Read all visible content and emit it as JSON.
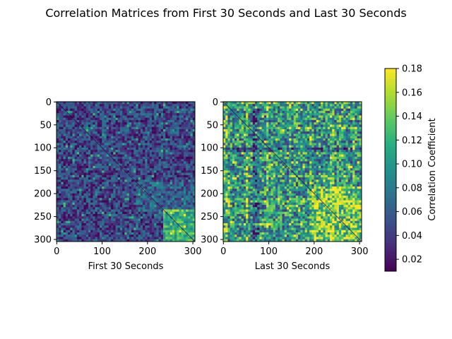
{
  "chart_data": {
    "title": "Correlation Matrices from First 30 Seconds and Last 30 Seconds",
    "type": "heatmap",
    "colormap": "viridis",
    "matrix_size": 305,
    "panels": [
      {
        "xlabel": "First 30 Seconds",
        "xticks": [
          "0",
          "100",
          "200",
          "300"
        ],
        "yticks": [
          "0",
          "50",
          "100",
          "150",
          "200",
          "250",
          "300"
        ],
        "summary": {
          "typical_value": 0.05,
          "bright_region": "lower-right (rows 230–305, cols 230–305)"
        }
      },
      {
        "xlabel": "Last 30 Seconds",
        "xticks": [
          "0",
          "100",
          "200",
          "300"
        ],
        "yticks": [
          "0",
          "50",
          "100",
          "150",
          "200",
          "250",
          "300"
        ],
        "summary": {
          "typical_value": 0.11,
          "bright_region": "lower-right and banded rows/columns"
        }
      }
    ],
    "colorbar": {
      "label": "Correlation Coefficient",
      "range": [
        0.01,
        0.18
      ],
      "ticks": [
        "0.18",
        "0.16",
        "0.14",
        "0.12",
        "0.10",
        "0.08",
        "0.06",
        "0.04",
        "0.02"
      ]
    }
  }
}
